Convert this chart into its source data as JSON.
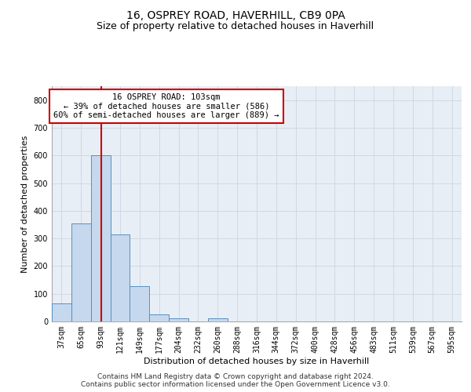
{
  "title": "16, OSPREY ROAD, HAVERHILL, CB9 0PA",
  "subtitle": "Size of property relative to detached houses in Haverhill",
  "xlabel": "Distribution of detached houses by size in Haverhill",
  "ylabel": "Number of detached properties",
  "footer_line1": "Contains HM Land Registry data © Crown copyright and database right 2024.",
  "footer_line2": "Contains public sector information licensed under the Open Government Licence v3.0.",
  "bar_labels": [
    "37sqm",
    "65sqm",
    "93sqm",
    "121sqm",
    "149sqm",
    "177sqm",
    "204sqm",
    "232sqm",
    "260sqm",
    "288sqm",
    "316sqm",
    "344sqm",
    "372sqm",
    "400sqm",
    "428sqm",
    "456sqm",
    "483sqm",
    "511sqm",
    "539sqm",
    "567sqm",
    "595sqm"
  ],
  "bar_values": [
    65,
    355,
    600,
    315,
    128,
    25,
    10,
    0,
    10,
    0,
    0,
    0,
    0,
    0,
    0,
    0,
    0,
    0,
    0,
    0,
    0
  ],
  "bar_color": "#c5d8ed",
  "bar_edgecolor": "#5a8fc0",
  "grid_color": "#d0d8e4",
  "background_color": "#ffffff",
  "plot_bg_color": "#e8eef5",
  "annotation_box_text": "16 OSPREY ROAD: 103sqm\n← 39% of detached houses are smaller (586)\n60% of semi-detached houses are larger (889) →",
  "annotation_box_color": "#cc0000",
  "vline_x_index": 2.05,
  "vline_color": "#cc0000",
  "ylim": [
    0,
    850
  ],
  "yticks": [
    0,
    100,
    200,
    300,
    400,
    500,
    600,
    700,
    800
  ],
  "title_fontsize": 10,
  "subtitle_fontsize": 9,
  "axis_label_fontsize": 8,
  "tick_fontsize": 7,
  "annotation_fontsize": 7.5,
  "footer_fontsize": 6.5
}
